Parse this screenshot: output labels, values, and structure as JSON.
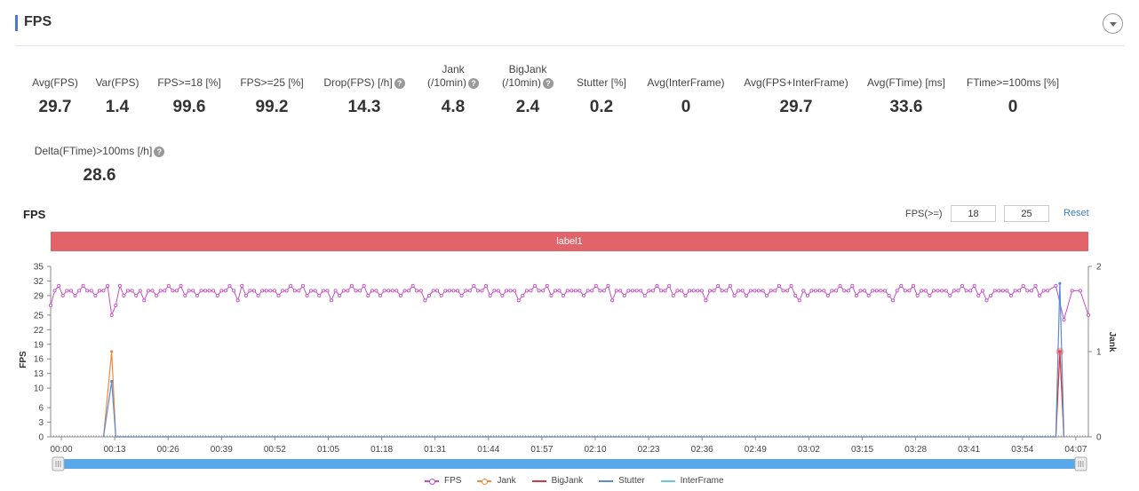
{
  "panel": {
    "title": "FPS"
  },
  "metrics": [
    {
      "label": "Avg(FPS)",
      "value": "29.7",
      "help": false
    },
    {
      "label": "Var(FPS)",
      "value": "1.4",
      "help": false
    },
    {
      "label": "FPS>=18 [%]",
      "value": "99.6",
      "help": false
    },
    {
      "label": "FPS>=25 [%]",
      "value": "99.2",
      "help": false
    },
    {
      "label": "Drop(FPS) [/h]",
      "value": "14.3",
      "help": true
    },
    {
      "label": "Jank (/10min)",
      "value": "4.8",
      "help": true
    },
    {
      "label": "BigJank (/10min)",
      "value": "2.4",
      "help": true
    },
    {
      "label": "Stutter [%]",
      "value": "0.2",
      "help": false
    },
    {
      "label": "Avg(InterFrame)",
      "value": "0",
      "help": false
    },
    {
      "label": "Avg(FPS+InterFrame)",
      "value": "29.7",
      "help": false
    },
    {
      "label": "Avg(FTime) [ms]",
      "value": "33.6",
      "help": false
    },
    {
      "label": "FTime>=100ms [%]",
      "value": "0",
      "help": false
    },
    {
      "label": "Delta(FTime)>100ms [/h]",
      "value": "28.6",
      "help": true
    }
  ],
  "chart_panel": {
    "title": "FPS",
    "threshold_label": "FPS(>=)",
    "threshold_low": "18",
    "threshold_high": "25",
    "reset_label": "Reset",
    "band_label": "label1"
  },
  "colors": {
    "fps": "#c24fc0",
    "jank": "#ee8a3a",
    "bigjank": "#d9383a",
    "stutter": "#5b8bd6",
    "interframe": "#6cc4e8",
    "band": "#e06469",
    "slider": "#59a8ea"
  },
  "chart_data": {
    "type": "line",
    "x_ticks": [
      "00:00",
      "00:13",
      "00:26",
      "00:39",
      "00:52",
      "01:05",
      "01:18",
      "01:31",
      "01:44",
      "01:57",
      "02:10",
      "02:23",
      "02:36",
      "02:49",
      "03:02",
      "03:15",
      "03:28",
      "03:41",
      "03:54",
      "04:07"
    ],
    "y_left_ticks": [
      0,
      3,
      6,
      10,
      13,
      16,
      19,
      22,
      25,
      29,
      32,
      35
    ],
    "y_left_label": "FPS",
    "y_left_range": [
      0,
      35
    ],
    "y_right_ticks": [
      0,
      1,
      2
    ],
    "y_right_label": "Jank",
    "y_right_range": [
      0,
      2
    ],
    "x_range_seconds": [
      0,
      255
    ],
    "series": [
      {
        "name": "FPS",
        "axis": "left"
      },
      {
        "name": "Jank",
        "axis": "right",
        "points": [
          [
            13,
            0
          ],
          [
            15,
            1
          ],
          [
            16,
            0
          ],
          [
            247,
            0
          ],
          [
            248,
            1
          ],
          [
            249,
            0
          ]
        ]
      },
      {
        "name": "BigJank",
        "axis": "right",
        "points": [
          [
            247,
            0
          ],
          [
            248,
            1
          ],
          [
            249,
            0
          ]
        ]
      },
      {
        "name": "Stutter",
        "axis": "right",
        "points": [
          [
            13,
            0
          ],
          [
            15,
            0.65
          ],
          [
            16,
            0
          ],
          [
            247,
            0
          ],
          [
            248,
            1.8
          ],
          [
            249,
            0
          ]
        ]
      },
      {
        "name": "InterFrame",
        "axis": "right",
        "points": []
      }
    ],
    "legend_position": "bottom"
  }
}
